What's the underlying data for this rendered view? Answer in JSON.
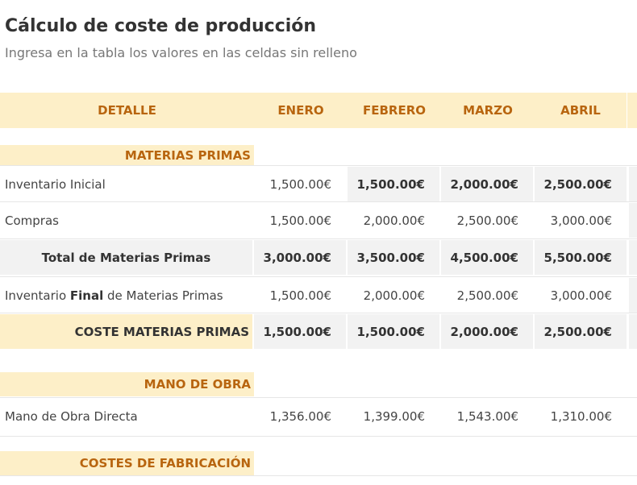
{
  "header": {
    "title": "Cálculo de coste de producción",
    "subtitle": "Ingresa en la tabla los valores en las celdas sin relleno"
  },
  "table": {
    "columns": [
      "DETALLE",
      "ENERO",
      "FEBRERO",
      "MARZO",
      "ABRIL"
    ],
    "sections": [
      {
        "title": "MATERIAS PRIMAS",
        "rows": [
          {
            "label": "Inventario Inicial",
            "values": [
              "1,500.00€",
              "1,500.00€",
              "2,000.00€",
              "2,500.00€"
            ]
          },
          {
            "label": "Compras",
            "values": [
              "1,500.00€",
              "2,000.00€",
              "2,500.00€",
              "3,000.00€"
            ]
          },
          {
            "label": "Total de Materias Primas",
            "values": [
              "3,000.00€",
              "3,500.00€",
              "4,500.00€",
              "5,500.00€"
            ]
          },
          {
            "label": [
              "Inventario ",
              "Final",
              " de Materias Primas"
            ],
            "values": [
              "1,500.00€",
              "2,000.00€",
              "2,500.00€",
              "3,000.00€"
            ]
          },
          {
            "label": "COSTE MATERIAS PRIMAS",
            "values": [
              "1,500.00€",
              "1,500.00€",
              "2,000.00€",
              "2,500.00€"
            ]
          }
        ]
      },
      {
        "title": "MANO DE OBRA",
        "rows": [
          {
            "label": "Mano de Obra Directa",
            "values": [
              "1,356.00€",
              "1,399.00€",
              "1,543.00€",
              "1,310.00€"
            ]
          }
        ]
      },
      {
        "title": "COSTES DE FABRICACIÓN",
        "rows": []
      }
    ]
  }
}
